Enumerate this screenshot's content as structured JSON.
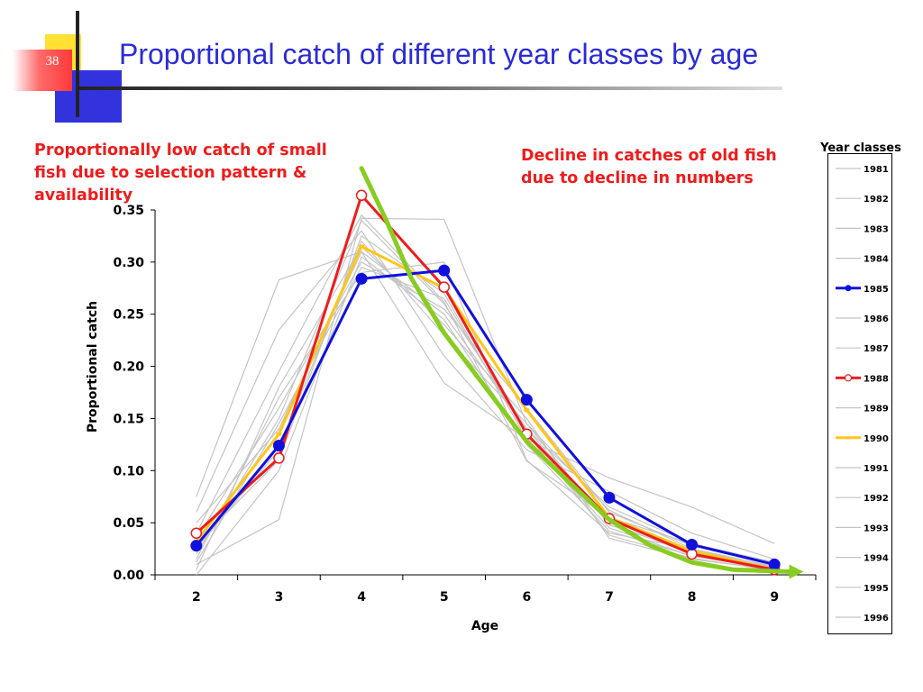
{
  "slide": {
    "number": "38",
    "title": "Proportional catch of different year classes by age"
  },
  "annotations": {
    "left": "Proportionally low catch of small fish due to selection pattern & availability",
    "right": "Decline in catches of old fish due to decline in numbers"
  },
  "colors": {
    "title": "#2b2bd6",
    "annotation": "#ee1c1c",
    "background_series": "#c4c4c4",
    "y1985": "#1010dd",
    "y1988": "#ee1c1c",
    "y1990": "#ffc61a",
    "trend": "#88cc22"
  },
  "chart_data": {
    "type": "line",
    "xlabel": "Age",
    "ylabel": "Proportional catch",
    "x": [
      2,
      3,
      4,
      5,
      6,
      7,
      8,
      9
    ],
    "ylim": [
      0,
      0.35
    ],
    "yticks": [
      "0.00",
      "0.05",
      "0.10",
      "0.15",
      "0.20",
      "0.25",
      "0.30",
      "0.35"
    ],
    "legend_title": "Year classes",
    "legend_placement": "right",
    "grid": false,
    "series": [
      {
        "name": "1981",
        "style": "background",
        "values": [
          0.075,
          0.283,
          0.31,
          0.184,
          0.13,
          0.093,
          0.065,
          0.03
        ]
      },
      {
        "name": "1982",
        "style": "background",
        "values": [
          0.06,
          0.235,
          0.33,
          0.21,
          0.12,
          0.08,
          0.04,
          0.015
        ]
      },
      {
        "name": "1983",
        "style": "background",
        "values": [
          0.04,
          0.195,
          0.345,
          0.262,
          0.109,
          0.055,
          0.03,
          0.01
        ]
      },
      {
        "name": "1984",
        "style": "background",
        "values": [
          0.01,
          0.053,
          0.342,
          0.341,
          0.145,
          0.062,
          0.025,
          0.008
        ]
      },
      {
        "name": "1985",
        "style": "blue",
        "values": [
          0.028,
          0.124,
          0.284,
          0.292,
          0.168,
          0.074,
          0.029,
          0.01
        ]
      },
      {
        "name": "1986",
        "style": "background",
        "values": [
          0.02,
          0.15,
          0.34,
          0.26,
          0.14,
          0.05,
          0.02,
          0.008
        ]
      },
      {
        "name": "1987",
        "style": "background",
        "values": [
          0.03,
          0.11,
          0.325,
          0.27,
          0.13,
          0.045,
          0.018,
          0.006
        ]
      },
      {
        "name": "1988",
        "style": "red",
        "values": [
          0.04,
          0.112,
          0.364,
          0.276,
          0.135,
          0.054,
          0.02,
          0.005
        ]
      },
      {
        "name": "1989",
        "style": "background",
        "values": [
          0.015,
          0.17,
          0.29,
          0.3,
          0.11,
          0.04,
          0.025,
          0.006
        ]
      },
      {
        "name": "1990",
        "style": "yellow",
        "values": [
          0.032,
          0.135,
          0.315,
          0.275,
          0.158,
          0.055,
          0.023,
          0.005
        ]
      },
      {
        "name": "1991",
        "style": "background",
        "values": [
          0.005,
          0.18,
          0.315,
          0.24,
          0.15,
          0.035,
          0.015,
          0.005
        ]
      },
      {
        "name": "1992",
        "style": "background",
        "values": [
          0.05,
          0.14,
          0.31,
          0.25,
          0.14,
          0.065,
          0.03,
          0.012
        ]
      },
      {
        "name": "1993",
        "style": "background",
        "values": [
          0.035,
          0.16,
          0.3,
          0.255,
          0.16,
          0.06,
          0.028,
          0.009
        ]
      },
      {
        "name": "1994",
        "style": "background",
        "values": [
          0.025,
          0.12,
          0.32,
          0.23,
          0.145,
          0.048,
          0.022,
          0.007
        ]
      },
      {
        "name": "1995",
        "style": "background",
        "values": [
          0.0,
          0.1,
          0.305,
          0.245,
          0.125,
          0.042,
          0.018,
          0.006
        ]
      },
      {
        "name": "1996",
        "style": "background",
        "values": [
          0.012,
          0.145,
          0.295,
          0.265,
          0.135,
          0.038,
          0.016,
          0.004
        ]
      }
    ],
    "trend_arrow": {
      "x": [
        4,
        4.3,
        4.6,
        5,
        5.5,
        6,
        6.5,
        7,
        7.5,
        8,
        8.5,
        9.2
      ],
      "y": [
        0.39,
        0.34,
        0.285,
        0.232,
        0.18,
        0.128,
        0.09,
        0.053,
        0.028,
        0.012,
        0.005,
        0.003
      ]
    }
  }
}
